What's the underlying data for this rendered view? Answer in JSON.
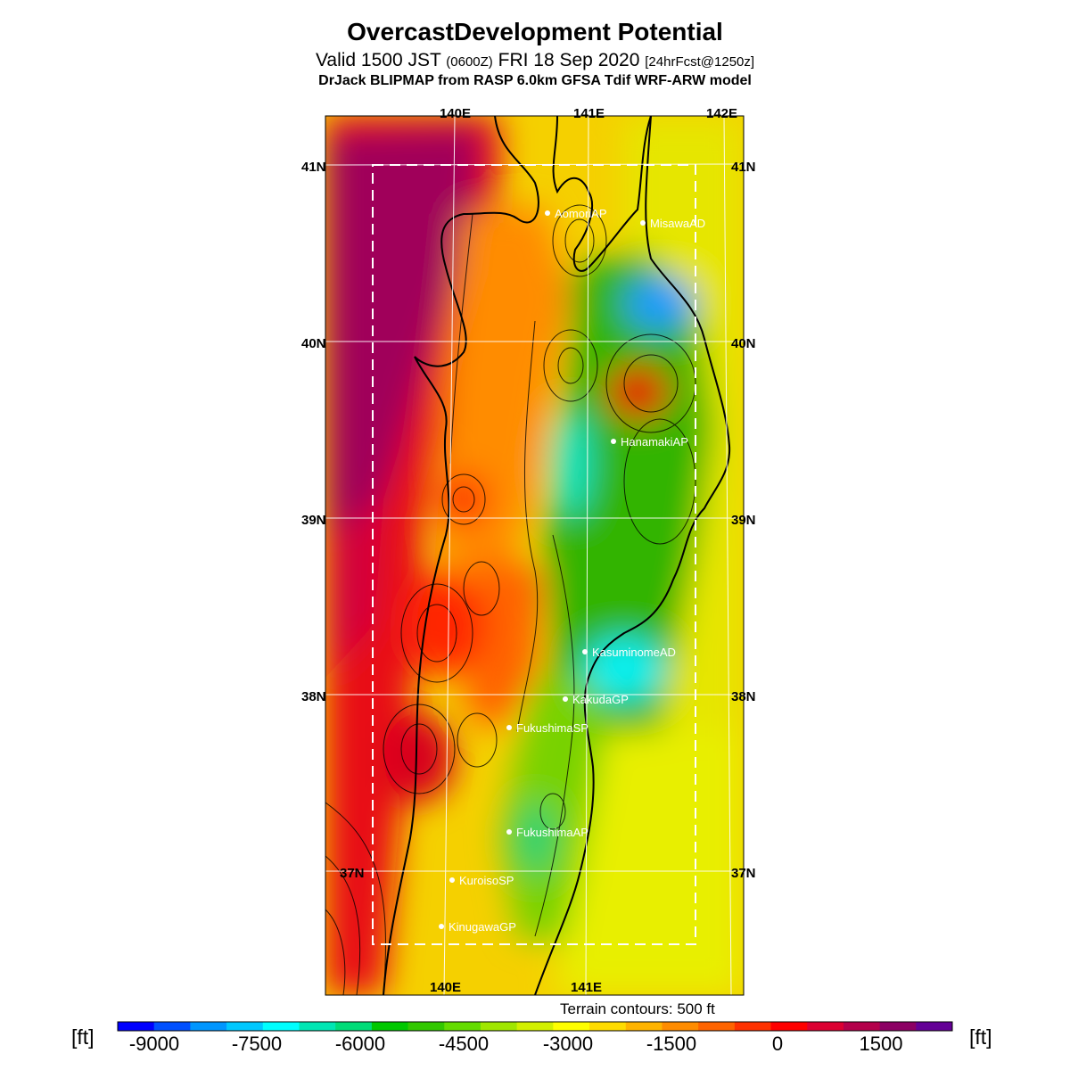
{
  "title": "OvercastDevelopment Potential",
  "subtitle": {
    "valid": "Valid 1500 JST",
    "utc": "(0600Z)",
    "date": "FRI 18 Sep 2020",
    "forecast": "[24hrFcst@1250z]"
  },
  "model_line": "DrJack BLIPMAP from RASP 6.0km GFSA Tdif WRF-ARW model",
  "map": {
    "lon_labels": [
      "140E",
      "141E",
      "142E"
    ],
    "lat_labels": [
      "41N",
      "40N",
      "39N",
      "38N",
      "37N"
    ],
    "sites": [
      {
        "name": "AomoriAP"
      },
      {
        "name": "MisawaAD"
      },
      {
        "name": "HanamakiAP"
      },
      {
        "name": "KasuminomeAD"
      },
      {
        "name": "KakudaGP"
      },
      {
        "name": "FukushimaSP"
      },
      {
        "name": "FukushimaAP"
      },
      {
        "name": "KuroisoSP"
      },
      {
        "name": "KinugawaGP"
      }
    ]
  },
  "terrain_note": "Terrain contours: 500 ft",
  "colorbar": {
    "unit": "[ft]",
    "tick_labels": [
      "-9000",
      "-7500",
      "-6000",
      "-4500",
      "-3000",
      "-1500",
      "0",
      "1500"
    ],
    "colors": [
      "#0000ff",
      "#0050ff",
      "#0096ff",
      "#00c8ff",
      "#00ffff",
      "#00e6b4",
      "#00dc78",
      "#00c800",
      "#32c800",
      "#64dc00",
      "#a0e600",
      "#d2f000",
      "#ffff00",
      "#ffdc00",
      "#ffb400",
      "#ff8c00",
      "#ff6400",
      "#ff3200",
      "#ff0000",
      "#dc0032",
      "#b4004b",
      "#8c0064",
      "#640096"
    ]
  }
}
